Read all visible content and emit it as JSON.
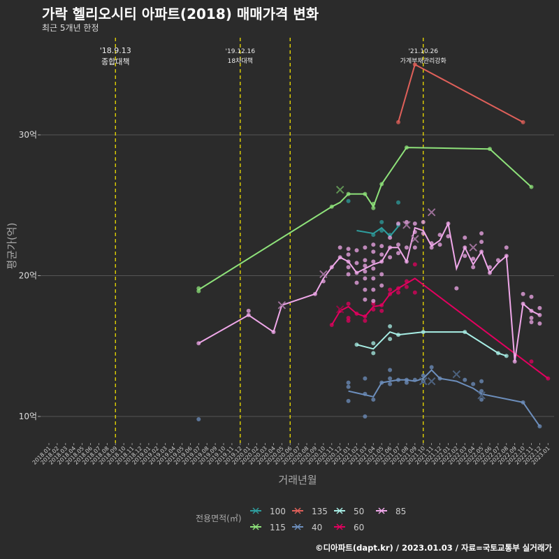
{
  "chart_data": {
    "type": "line",
    "title": "가락 헬리오시티 아파트(2018) 매매가격 변화",
    "subtitle": "최근 5개년 한정",
    "xlabel": "거래년월",
    "ylabel": "평균가(억)",
    "ylim": [
      8.0,
      37.0
    ],
    "yticks": [
      10,
      20,
      30
    ],
    "ytick_labels": [
      "10억",
      "20억",
      "30억"
    ],
    "x_start": "2018-01",
    "x_end": "2023-01",
    "x_tick_labels": [
      "2018.01",
      "2018.02",
      "2018.03",
      "2018.04",
      "2018.05",
      "2018.06",
      "2018.07",
      "2018.08",
      "2018.09",
      "2018.10",
      "2018.11",
      "2018.12",
      "2019.01",
      "2019.02",
      "2019.03",
      "2019.04",
      "2019.05",
      "2019.06",
      "2019.07",
      "2019.08",
      "2019.09",
      "2019.10",
      "2019.11",
      "2019.12",
      "2020.01",
      "2020.02",
      "2020.03",
      "2020.04",
      "2020.05",
      "2020.06",
      "2020.07",
      "2020.08",
      "2020.09",
      "2020.10",
      "2020.11",
      "2020.12",
      "2021.01",
      "2021.02",
      "2021.03",
      "2021.04",
      "2021.05",
      "2021.06",
      "2021.07",
      "2021.08",
      "2021.09",
      "2021.10",
      "2021.11",
      "2021.12",
      "2022.01",
      "2022.02",
      "2022.03",
      "2022.04",
      "2022.05",
      "2022.06",
      "2022.07",
      "2022.08",
      "2022.09",
      "2022.10",
      "2022.11",
      "2022.12",
      "2023.01"
    ],
    "events": [
      {
        "x": 8.0,
        "date": "'18.9.13",
        "label": "종합대책"
      },
      {
        "x": 23.0,
        "date": "'19.12.16",
        "label": "18차대책"
      },
      {
        "x": 29.0,
        "date": "",
        "label": ""
      },
      {
        "x": 45.0,
        "date": "'21.10.26",
        "label": "가계부채관리강화"
      }
    ],
    "legend_title": "전용면적(㎡)",
    "legend_rows": [
      [
        "100",
        "135",
        "50",
        "85"
      ],
      [
        "115",
        "40",
        "60"
      ]
    ],
    "series": [
      {
        "name": "100",
        "color": "#2e9e9e",
        "line": [
          [
            37,
            23.2
          ],
          [
            39,
            23.0
          ],
          [
            40,
            23.4
          ],
          [
            41,
            22.8
          ],
          [
            42,
            23.5
          ]
        ],
        "points": [
          [
            36,
            25.3
          ],
          [
            39,
            22.9
          ],
          [
            40,
            23.8
          ],
          [
            40,
            23.2
          ],
          [
            41,
            22.9
          ],
          [
            42,
            25.2
          ],
          [
            42,
            23.6
          ]
        ],
        "crosses": []
      },
      {
        "name": "115",
        "color": "#8ee27a",
        "line": [
          [
            18,
            19.0
          ],
          [
            34,
            24.9
          ],
          [
            35,
            25.2
          ],
          [
            36,
            25.8
          ],
          [
            38,
            25.8
          ],
          [
            39,
            24.9
          ],
          [
            40,
            26.5
          ],
          [
            43,
            29.1
          ],
          [
            53,
            29.0
          ],
          [
            58,
            26.3
          ]
        ],
        "points": [
          [
            18,
            19.1
          ],
          [
            18,
            18.9
          ],
          [
            34,
            24.9
          ],
          [
            36,
            25.8
          ],
          [
            38,
            25.8
          ],
          [
            39,
            24.8
          ],
          [
            39,
            25.1
          ],
          [
            40,
            26.5
          ],
          [
            43,
            29.1
          ],
          [
            53,
            29.0
          ],
          [
            58,
            26.3
          ]
        ],
        "crosses": [
          [
            35,
            26.1
          ]
        ]
      },
      {
        "name": "135",
        "color": "#e0605a",
        "line": [
          [
            42,
            30.9
          ],
          [
            44,
            35.0
          ],
          [
            57,
            30.9
          ]
        ],
        "points": [
          [
            42,
            30.9
          ],
          [
            44,
            35.0
          ],
          [
            57,
            30.9
          ]
        ],
        "crosses": []
      },
      {
        "name": "40",
        "color": "#6d8fbd",
        "line": [
          [
            36,
            11.8
          ],
          [
            39,
            11.4
          ],
          [
            40,
            12.4
          ],
          [
            41,
            12.5
          ],
          [
            42,
            12.6
          ],
          [
            43,
            12.6
          ],
          [
            44,
            12.5
          ],
          [
            45,
            12.7
          ],
          [
            46,
            13.3
          ],
          [
            47,
            12.7
          ],
          [
            49,
            12.5
          ],
          [
            51,
            12.0
          ],
          [
            52,
            11.6
          ],
          [
            57,
            11.0
          ],
          [
            59,
            9.3
          ]
        ],
        "points": [
          [
            18,
            9.8
          ],
          [
            36,
            12.4
          ],
          [
            36,
            12.1
          ],
          [
            36,
            11.1
          ],
          [
            38,
            12.7
          ],
          [
            38,
            11.6
          ],
          [
            38,
            10.0
          ],
          [
            39,
            11.2
          ],
          [
            40,
            12.4
          ],
          [
            41,
            13.3
          ],
          [
            41,
            12.7
          ],
          [
            41,
            12.3
          ],
          [
            42,
            12.6
          ],
          [
            43,
            12.6
          ],
          [
            43,
            12.4
          ],
          [
            44,
            12.6
          ],
          [
            45,
            12.9
          ],
          [
            45,
            12.5
          ],
          [
            46,
            13.5
          ],
          [
            47,
            12.7
          ],
          [
            50,
            12.6
          ],
          [
            51,
            12.3
          ],
          [
            52,
            11.8
          ],
          [
            52,
            12.5
          ],
          [
            52,
            11.2
          ],
          [
            57,
            11.0
          ],
          [
            59,
            9.3
          ]
        ],
        "crosses": [
          [
            45,
            12.5
          ],
          [
            46,
            12.5
          ],
          [
            49,
            13.0
          ],
          [
            52,
            11.5
          ]
        ]
      },
      {
        "name": "50",
        "color": "#a8efe6",
        "line": [
          [
            37,
            15.1
          ],
          [
            39,
            14.8
          ],
          [
            41,
            16.0
          ],
          [
            42,
            15.8
          ],
          [
            45,
            16.0
          ],
          [
            50,
            16.0
          ],
          [
            54,
            14.5
          ],
          [
            55,
            14.3
          ]
        ],
        "points": [
          [
            37,
            15.1
          ],
          [
            39,
            14.5
          ],
          [
            39,
            15.2
          ],
          [
            41,
            16.4
          ],
          [
            41,
            15.5
          ],
          [
            42,
            15.8
          ],
          [
            45,
            16.0
          ],
          [
            50,
            16.0
          ],
          [
            54,
            14.5
          ],
          [
            55,
            14.3
          ]
        ],
        "crosses": []
      },
      {
        "name": "60",
        "color": "#e3005f",
        "line": [
          [
            34,
            16.5
          ],
          [
            35,
            17.5
          ],
          [
            36,
            17.8
          ],
          [
            37,
            17.3
          ],
          [
            38,
            17.1
          ],
          [
            39,
            17.8
          ],
          [
            40,
            17.9
          ],
          [
            41,
            18.7
          ],
          [
            42,
            19.1
          ],
          [
            44,
            19.8
          ],
          [
            60,
            12.7
          ]
        ],
        "points": [
          [
            34,
            16.5
          ],
          [
            35,
            17.5
          ],
          [
            36,
            18.0
          ],
          [
            36,
            17.0
          ],
          [
            36,
            16.8
          ],
          [
            37,
            17.3
          ],
          [
            38,
            17.1
          ],
          [
            38,
            16.8
          ],
          [
            39,
            18.0
          ],
          [
            39,
            17.6
          ],
          [
            40,
            17.9
          ],
          [
            40,
            17.5
          ],
          [
            41,
            18.7
          ],
          [
            41,
            19.0
          ],
          [
            42,
            19.1
          ],
          [
            42,
            18.8
          ],
          [
            43,
            19.6
          ],
          [
            43,
            19.2
          ],
          [
            44,
            20.8
          ],
          [
            44,
            18.8
          ],
          [
            58,
            13.9
          ],
          [
            60,
            12.7
          ]
        ],
        "crosses": [
          [
            35,
            17.6
          ]
        ]
      },
      {
        "name": "85",
        "color": "#f0a8ea",
        "line": [
          [
            18,
            15.2
          ],
          [
            24,
            17.2
          ],
          [
            27,
            16.0
          ],
          [
            28,
            17.9
          ],
          [
            32,
            18.7
          ],
          [
            33,
            19.8
          ],
          [
            34,
            20.6
          ],
          [
            35,
            21.3
          ],
          [
            36,
            21.0
          ],
          [
            37,
            20.2
          ],
          [
            38,
            20.5
          ],
          [
            39,
            20.8
          ],
          [
            40,
            21.0
          ],
          [
            41,
            22.0
          ],
          [
            42,
            22.0
          ],
          [
            43,
            21.0
          ],
          [
            44,
            23.4
          ],
          [
            45,
            23.2
          ],
          [
            46,
            22.1
          ],
          [
            47,
            22.5
          ],
          [
            48,
            23.7
          ],
          [
            49,
            20.5
          ],
          [
            50,
            22.0
          ],
          [
            51,
            20.8
          ],
          [
            52,
            21.7
          ],
          [
            53,
            20.2
          ],
          [
            54,
            20.9
          ],
          [
            55,
            21.4
          ],
          [
            56,
            13.9
          ],
          [
            57,
            18.0
          ],
          [
            58,
            17.5
          ],
          [
            59,
            17.2
          ]
        ],
        "points": [
          [
            18,
            15.2
          ],
          [
            24,
            17.2
          ],
          [
            24,
            17.5
          ],
          [
            27,
            16.0
          ],
          [
            32,
            18.7
          ],
          [
            33,
            19.6
          ],
          [
            34,
            20.6
          ],
          [
            35,
            21.3
          ],
          [
            35,
            22.0
          ],
          [
            36,
            21.9
          ],
          [
            36,
            21.5
          ],
          [
            36,
            21.0
          ],
          [
            36,
            20.6
          ],
          [
            36,
            20.1
          ],
          [
            37,
            21.8
          ],
          [
            37,
            20.9
          ],
          [
            37,
            20.2
          ],
          [
            37,
            19.5
          ],
          [
            38,
            22.0
          ],
          [
            38,
            21.1
          ],
          [
            38,
            20.7
          ],
          [
            38,
            20.3
          ],
          [
            38,
            19.8
          ],
          [
            38,
            19.0
          ],
          [
            38,
            18.3
          ],
          [
            39,
            22.2
          ],
          [
            39,
            21.7
          ],
          [
            39,
            21.0
          ],
          [
            39,
            20.5
          ],
          [
            39,
            19.8
          ],
          [
            39,
            19.0
          ],
          [
            39,
            18.2
          ],
          [
            40,
            22.1
          ],
          [
            40,
            21.5
          ],
          [
            40,
            21.0
          ],
          [
            40,
            20.1
          ],
          [
            40,
            19.3
          ],
          [
            41,
            22.7
          ],
          [
            41,
            22.0
          ],
          [
            41,
            21.3
          ],
          [
            42,
            23.7
          ],
          [
            42,
            22.2
          ],
          [
            42,
            21.6
          ],
          [
            43,
            23.8
          ],
          [
            43,
            22.0
          ],
          [
            43,
            21.0
          ],
          [
            44,
            23.7
          ],
          [
            44,
            23.1
          ],
          [
            44,
            22.0
          ],
          [
            45,
            23.8
          ],
          [
            45,
            23.0
          ],
          [
            46,
            22.3
          ],
          [
            46,
            22.0
          ],
          [
            47,
            22.9
          ],
          [
            47,
            22.2
          ],
          [
            48,
            23.7
          ],
          [
            48,
            22.8
          ],
          [
            49,
            19.1
          ],
          [
            50,
            22.7
          ],
          [
            50,
            22.0
          ],
          [
            50,
            21.4
          ],
          [
            51,
            21.2
          ],
          [
            51,
            20.6
          ],
          [
            52,
            23.0
          ],
          [
            52,
            22.4
          ],
          [
            52,
            21.7
          ],
          [
            53,
            20.2
          ],
          [
            53,
            20.6
          ],
          [
            54,
            21.1
          ],
          [
            55,
            22.0
          ],
          [
            55,
            21.4
          ],
          [
            56,
            13.9
          ],
          [
            57,
            18.7
          ],
          [
            57,
            18.0
          ],
          [
            58,
            18.5
          ],
          [
            58,
            17.5
          ],
          [
            58,
            17.0
          ],
          [
            58,
            16.7
          ],
          [
            59,
            17.7
          ],
          [
            59,
            17.2
          ],
          [
            59,
            16.6
          ]
        ],
        "crosses": [
          [
            28,
            17.9
          ],
          [
            33,
            20.1
          ],
          [
            43,
            23.6
          ],
          [
            44,
            22.6
          ],
          [
            46,
            24.5
          ],
          [
            51,
            22.0
          ]
        ]
      }
    ]
  },
  "footer": "©디아파트(dapt.kr) / 2023.01.03 / 자료=국토교통부 실거래가"
}
